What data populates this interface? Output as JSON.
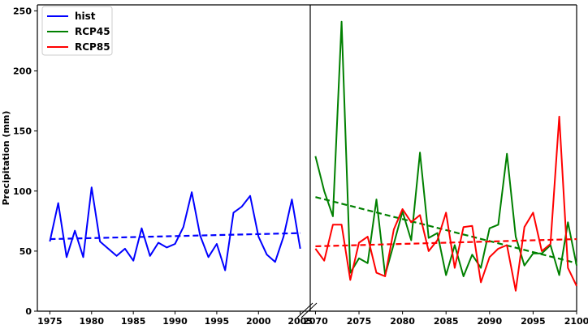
{
  "chart_data": {
    "type": "line",
    "ylabel": "Precipitation (mm)",
    "ylim": [
      0,
      255
    ],
    "yticks": [
      0,
      50,
      100,
      150,
      200,
      250
    ],
    "broken_x_axis": true,
    "panels": [
      {
        "name": "historical",
        "xlim": [
          1973.5,
          2006.2
        ],
        "xticks": [
          1975,
          1980,
          1985,
          1990,
          1995,
          2000,
          2005
        ]
      },
      {
        "name": "future",
        "xlim": [
          2069.4,
          2100
        ],
        "xticks": [
          2070,
          2075,
          2080,
          2085,
          2090,
          2095,
          2100
        ]
      }
    ],
    "legend": {
      "position": "top-left"
    },
    "series": [
      {
        "name": "hist",
        "color": "#0000ff",
        "panel": 0,
        "x": [
          1975,
          1976,
          1977,
          1978,
          1979,
          1980,
          1981,
          1982,
          1983,
          1984,
          1985,
          1986,
          1987,
          1988,
          1989,
          1990,
          1991,
          1992,
          1993,
          1994,
          1995,
          1996,
          1997,
          1998,
          1999,
          2000,
          2001,
          2002,
          2003,
          2004,
          2005
        ],
        "values": [
          58,
          90,
          45,
          67,
          45,
          103,
          58,
          52,
          46,
          52,
          42,
          69,
          46,
          57,
          53,
          56,
          70,
          99,
          63,
          45,
          56,
          34,
          82,
          87,
          96,
          62,
          47,
          41,
          62,
          93,
          52
        ],
        "trend": {
          "x": [
            1975,
            2005
          ],
          "y": [
            60,
            65
          ]
        }
      },
      {
        "name": "RCP45",
        "color": "#008000",
        "panel": 1,
        "x": [
          2070,
          2071,
          2072,
          2073,
          2074,
          2075,
          2076,
          2077,
          2078,
          2079,
          2080,
          2081,
          2082,
          2083,
          2084,
          2085,
          2086,
          2087,
          2088,
          2089,
          2090,
          2091,
          2092,
          2093,
          2094,
          2095,
          2096,
          2097,
          2098,
          2099,
          2100
        ],
        "values": [
          129,
          100,
          79,
          241,
          32,
          44,
          40,
          93,
          30,
          56,
          83,
          59,
          132,
          61,
          65,
          30,
          55,
          29,
          47,
          36,
          69,
          72,
          131,
          62,
          38,
          48,
          48,
          55,
          30,
          74,
          38
        ],
        "trend": {
          "x": [
            2070,
            2100
          ],
          "y": [
            95,
            40
          ]
        }
      },
      {
        "name": "RCP85",
        "color": "#ff0000",
        "panel": 1,
        "x": [
          2070,
          2071,
          2072,
          2073,
          2074,
          2075,
          2076,
          2077,
          2078,
          2079,
          2080,
          2081,
          2082,
          2083,
          2084,
          2085,
          2086,
          2087,
          2088,
          2089,
          2090,
          2091,
          2092,
          2093,
          2094,
          2095,
          2096,
          2097,
          2098,
          2099,
          2100
        ],
        "values": [
          52,
          42,
          72,
          72,
          26,
          57,
          62,
          32,
          29,
          68,
          85,
          74,
          80,
          50,
          59,
          82,
          36,
          70,
          71,
          24,
          45,
          52,
          55,
          17,
          70,
          82,
          50,
          56,
          162,
          36,
          21
        ],
        "trend": {
          "x": [
            2070,
            2100
          ],
          "y": [
            54,
            60
          ]
        }
      }
    ]
  }
}
